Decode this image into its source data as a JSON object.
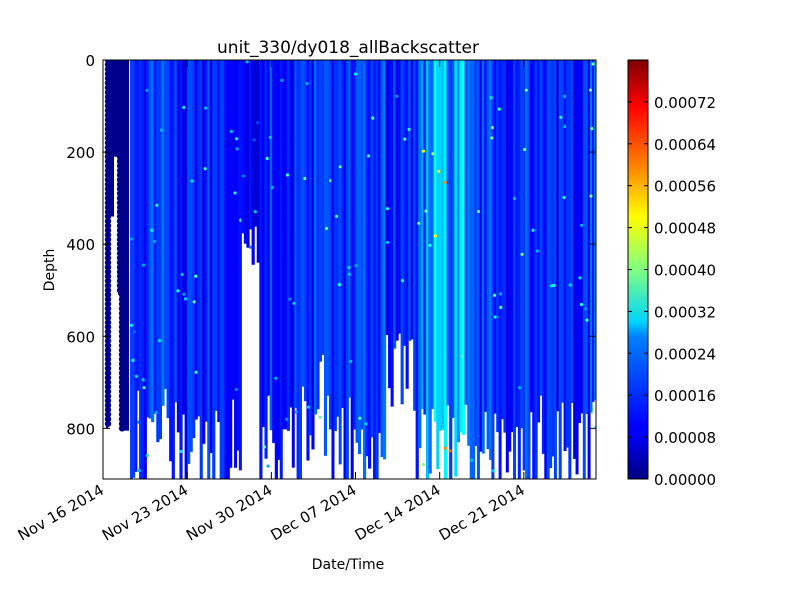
{
  "chart_data": {
    "type": "scatter",
    "title": "unit_330/dy018_allBackscatter",
    "xlabel": "Date/Time",
    "ylabel": "Depth",
    "x_axis": {
      "scale": "time",
      "range": [
        "2014-11-16",
        "2014-12-27"
      ],
      "tick_dates": [
        "2014-11-16",
        "2014-11-23",
        "2014-11-30",
        "2014-12-07",
        "2014-12-14",
        "2014-12-21"
      ],
      "tick_labels": [
        "Nov 16 2014",
        "Nov 23 2014",
        "Nov 30 2014",
        "Dec 07 2014",
        "Dec 14 2014",
        "Dec 21 2014"
      ]
    },
    "y_axis": {
      "inverted": true,
      "range": [
        0,
        910
      ],
      "ticks": [
        0,
        200,
        400,
        600,
        800
      ],
      "tick_labels": [
        "0",
        "200",
        "400",
        "600",
        "800"
      ]
    },
    "colorbar": {
      "colormap": "jet",
      "range": [
        0,
        0.0008
      ],
      "ticks": [
        0,
        8e-05,
        0.00016,
        0.00024,
        0.00032,
        0.0004,
        0.00048,
        0.00056,
        0.00064,
        0.00072
      ],
      "tick_labels": [
        "0.00000",
        "0.00008",
        "0.00016",
        "0.00024",
        "0.00032",
        "0.00040",
        "0.00048",
        "0.00056",
        "0.00064",
        "0.00072"
      ]
    },
    "series": [
      {
        "profiles": [
          {
            "date": "2014-11-16 08:00",
            "max_depth": 800,
            "backscatter": 1e-05
          },
          {
            "date": "2014-11-16 10:00",
            "max_depth": 340,
            "backscatter": 1e-05
          },
          {
            "date": "2014-11-17 00:00",
            "max_depth": 210,
            "backscatter": 1e-05
          },
          {
            "date": "2014-11-17 08:00",
            "max_depth": 510,
            "backscatter": 1e-05
          },
          {
            "date": "2014-11-17 12:00",
            "max_depth": 805,
            "backscatter": 1e-05
          },
          {
            "date": "2014-11-18 06:00",
            "max_depth": 880,
            "backscatter": 0.00011
          },
          {
            "date": "2014-11-19 00:00",
            "max_depth": 910,
            "backscatter": 0.00013
          },
          {
            "date": "2014-11-20 00:00",
            "max_depth": 800,
            "backscatter": 0.00014
          },
          {
            "date": "2014-11-21 12:00",
            "max_depth": 910,
            "backscatter": 0.00012
          },
          {
            "date": "2014-11-23 00:00",
            "max_depth": 910,
            "backscatter": 0.00013
          },
          {
            "date": "2014-11-25 12:00",
            "max_depth": 910,
            "backscatter": 0.00012
          },
          {
            "date": "2014-11-27 12:00",
            "max_depth": 410,
            "backscatter": 9e-05
          },
          {
            "date": "2014-11-29 00:00",
            "max_depth": 910,
            "backscatter": 0.00014
          },
          {
            "date": "2014-11-30 12:00",
            "max_depth": 910,
            "backscatter": 0.00012
          },
          {
            "date": "2014-12-02 12:00",
            "max_depth": 800,
            "backscatter": 0.00013
          },
          {
            "date": "2014-12-05 00:00",
            "max_depth": 910,
            "backscatter": 0.00013
          },
          {
            "date": "2014-12-07 00:00",
            "max_depth": 910,
            "backscatter": 0.00014
          },
          {
            "date": "2014-12-09 12:00",
            "max_depth": 700,
            "backscatter": 0.00012
          },
          {
            "date": "2014-12-12 00:00",
            "max_depth": 910,
            "backscatter": 0.00018
          },
          {
            "date": "2014-12-13 12:00",
            "max_depth": 910,
            "backscatter": 0.00022
          },
          {
            "date": "2014-12-16 12:00",
            "max_depth": 910,
            "backscatter": 0.00014
          },
          {
            "date": "2014-12-18 12:00",
            "max_depth": 910,
            "backscatter": 0.00013
          },
          {
            "date": "2014-12-20 12:00",
            "max_depth": 910,
            "backscatter": 0.00014
          },
          {
            "date": "2014-12-22 12:00",
            "max_depth": 910,
            "backscatter": 0.00012
          },
          {
            "date": "2014-12-24 12:00",
            "max_depth": 910,
            "backscatter": 0.00013
          },
          {
            "date": "2014-12-26 12:00",
            "max_depth": 860,
            "backscatter": 0.00014
          }
        ]
      }
    ],
    "grid": false,
    "legend": "none"
  }
}
